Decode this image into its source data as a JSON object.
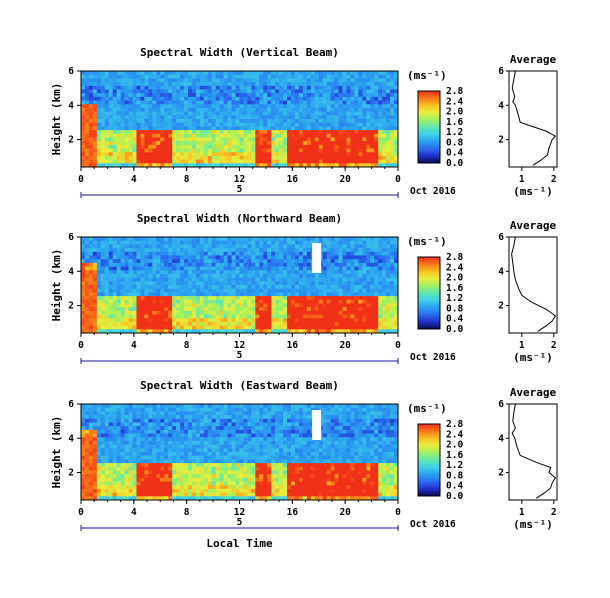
{
  "colorbar": {
    "unit_label": "(ms⁻¹)",
    "ticks": [
      "0.0",
      "0.4",
      "0.8",
      "1.2",
      "1.6",
      "2.0",
      "2.4",
      "2.8"
    ],
    "stops": [
      "#0a0a50",
      "#2030c8",
      "#2a6cf0",
      "#2aa0f0",
      "#40d0e8",
      "#60e8b0",
      "#a0f060",
      "#e8f040",
      "#f8c020",
      "#f87818",
      "#f03018"
    ]
  },
  "date_label": "Oct 2016",
  "xlabel": "Local Time",
  "average_title": "Average",
  "average_xlabel": "(ms⁻¹)",
  "chart_data": [
    {
      "type": "heatmap",
      "title": "Spectral Width (Vertical Beam)",
      "ylabel": "Height (km)",
      "x_ticks": [
        "0",
        "4",
        "8",
        "12",
        "16",
        "20",
        "0"
      ],
      "x_day_tick": "5",
      "y_ticks": [
        "2",
        "4",
        "6"
      ],
      "xlim": [
        0,
        24
      ],
      "ylim": [
        0.4,
        6
      ],
      "zlim": [
        0,
        2.8
      ],
      "average": {
        "xlim": [
          0.6,
          2.1
        ],
        "x_ticks": [
          "1",
          "2"
        ],
        "y_ticks": [
          "2",
          "4",
          "6"
        ],
        "height_km": [
          0.5,
          0.8,
          1.1,
          1.5,
          2.0,
          2.2,
          2.5,
          3.0,
          3.5,
          4.0,
          4.2,
          4.5,
          5.0,
          5.5,
          6.0
        ],
        "width_ms": [
          1.35,
          1.6,
          1.8,
          1.85,
          1.95,
          2.05,
          1.75,
          0.95,
          0.88,
          0.8,
          0.72,
          0.78,
          0.7,
          0.75,
          0.8
        ]
      }
    },
    {
      "type": "heatmap",
      "title": "Spectral Width (Northward Beam)",
      "ylabel": "Height (km)",
      "x_ticks": [
        "0",
        "4",
        "8",
        "12",
        "16",
        "20",
        "0"
      ],
      "x_day_tick": "5",
      "y_ticks": [
        "2",
        "4",
        "6"
      ],
      "xlim": [
        0,
        24
      ],
      "ylim": [
        0.4,
        6
      ],
      "zlim": [
        0,
        2.8
      ],
      "average": {
        "xlim": [
          0.6,
          2.1
        ],
        "x_ticks": [
          "1",
          "2"
        ],
        "y_ticks": [
          "2",
          "4",
          "6"
        ],
        "height_km": [
          0.5,
          0.8,
          1.1,
          1.4,
          1.8,
          2.2,
          2.6,
          3.0,
          3.5,
          4.0,
          4.5,
          5.0,
          5.5,
          6.0
        ],
        "width_ms": [
          1.5,
          1.75,
          1.95,
          2.05,
          1.75,
          1.3,
          1.0,
          0.9,
          0.8,
          0.75,
          0.72,
          0.68,
          0.75,
          0.8
        ]
      }
    },
    {
      "type": "heatmap",
      "title": "Spectral Width (Eastward Beam)",
      "ylabel": "Height (km)",
      "x_ticks": [
        "0",
        "4",
        "8",
        "12",
        "16",
        "20",
        "0"
      ],
      "x_day_tick": "5",
      "y_ticks": [
        "2",
        "4",
        "6"
      ],
      "xlim": [
        0,
        24
      ],
      "ylim": [
        0.4,
        6
      ],
      "zlim": [
        0,
        2.8
      ],
      "average": {
        "xlim": [
          0.6,
          2.1
        ],
        "x_ticks": [
          "1",
          "2"
        ],
        "y_ticks": [
          "2",
          "4",
          "6"
        ],
        "height_km": [
          0.5,
          0.8,
          1.1,
          1.4,
          1.7,
          2.0,
          2.3,
          2.6,
          3.0,
          3.5,
          4.0,
          4.3,
          4.6,
          5.0,
          5.5,
          6.0
        ],
        "width_ms": [
          1.45,
          1.7,
          1.9,
          1.95,
          2.05,
          1.85,
          1.9,
          1.45,
          0.95,
          0.85,
          0.78,
          0.7,
          0.8,
          0.72,
          0.75,
          0.8
        ]
      }
    }
  ]
}
